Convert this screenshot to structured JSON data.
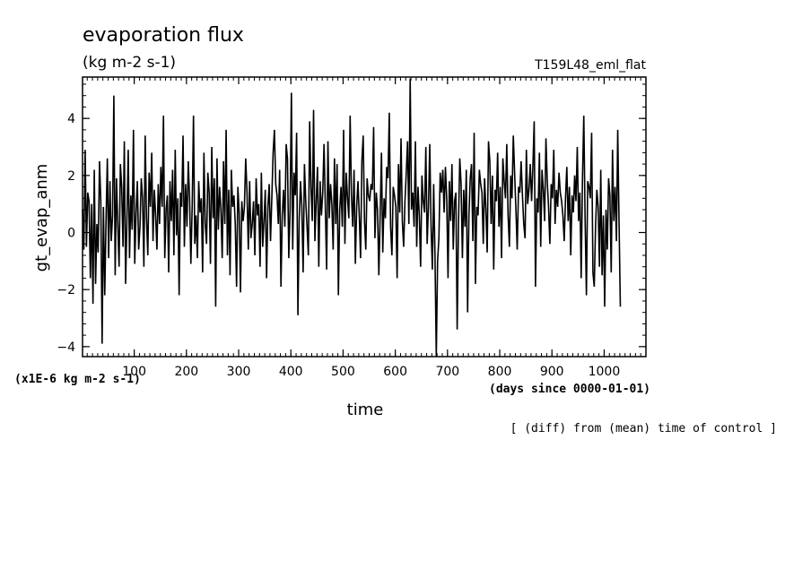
{
  "chart_data": {
    "type": "line",
    "title": "evaporation flux",
    "units": "(kg m-2 s-1)",
    "run_label": "T159L48_eml_flat",
    "ylabel": "gt_evap_anm",
    "xlabel": "time",
    "x_units": "(days since 0000-01-01)",
    "y_scale_note": "(x1E-6 kg m-2 s-1)",
    "footer": "[ (diff) from (mean) time of control ]",
    "xlim": [
      1,
      1080
    ],
    "ylim": [
      -4.35,
      5.45
    ],
    "x_ticks_major": [
      100,
      200,
      300,
      400,
      500,
      600,
      700,
      800,
      900,
      1000
    ],
    "y_ticks_major": [
      -4,
      -2,
      0,
      2,
      4
    ],
    "x_ticks_minor_step": 10,
    "y_ticks_minor_step": 0.4,
    "grid": false,
    "legend": "none",
    "line_color": "#000000",
    "series": [
      {
        "x_start": 1,
        "x_step": 2.5,
        "values": [
          0.8,
          -0.6,
          2.9,
          -0.5,
          1.4,
          1.1,
          -1.6,
          1.0,
          -2.5,
          2.2,
          -1.8,
          0.3,
          -0.7,
          2.5,
          1.1,
          -3.9,
          0.9,
          -2.2,
          0.4,
          2.6,
          -0.9,
          1.8,
          -0.3,
          0.6,
          4.8,
          -1.5,
          1.9,
          0.3,
          -1.2,
          2.4,
          1.6,
          -0.5,
          3.2,
          -1.8,
          0.4,
          2.9,
          -0.9,
          1.3,
          0.1,
          3.6,
          -1.1,
          0.7,
          1.8,
          -0.6,
          0.2,
          1.9,
          1.2,
          -1.2,
          3.4,
          0.5,
          -0.8,
          2.1,
          0.9,
          2.8,
          -0.3,
          1.5,
          0.6,
          -0.6,
          1.7,
          0.3,
          2.3,
          0.9,
          4.1,
          -0.9,
          0.8,
          1.3,
          -1.4,
          1.8,
          0.4,
          2.2,
          -0.8,
          2.9,
          -0.1,
          1.2,
          -2.2,
          1.4,
          0.9,
          3.4,
          -0.5,
          1.7,
          0.2,
          2.5,
          1.2,
          -1.1,
          0.9,
          4.1,
          -0.4,
          0.6,
          -0.9,
          1.8,
          0.7,
          1.2,
          -1.4,
          2.8,
          0.3,
          -0.4,
          2.1,
          1.4,
          -1.1,
          3.0,
          0.5,
          1.9,
          -2.6,
          2.6,
          0.1,
          1.6,
          0.8,
          -0.9,
          2.5,
          0.3,
          3.6,
          -0.8,
          1.5,
          -1.5,
          2.2,
          0.9,
          1.3,
          0.3,
          -1.9,
          1.6,
          0.7,
          -2.1,
          1.1,
          0.4,
          0.9,
          2.6,
          1.4,
          -0.6,
          1.8,
          -0.2,
          0.3,
          1.1,
          -0.8,
          1.9,
          0.6,
          1.0,
          -1.2,
          2.1,
          -0.5,
          0.4,
          1.5,
          -1.6,
          0.9,
          1.7,
          -0.3,
          1.2,
          2.8,
          3.6,
          1.7,
          1.3,
          0.3,
          2.2,
          -1.9,
          0.6,
          1.5,
          0.2,
          3.1,
          2.6,
          -0.9,
          0.8,
          4.9,
          -0.6,
          2.1,
          1.3,
          3.5,
          -2.9,
          0.5,
          1.8,
          0.9,
          -1.4,
          2.4,
          1.1,
          0.2,
          -0.8,
          3.9,
          1.6,
          0.4,
          4.3,
          -0.3,
          1.1,
          2.3,
          -1.2,
          1.8,
          0.6,
          1.4,
          3.1,
          0.9,
          -1.3,
          3.2,
          0.5,
          1.7,
          1.0,
          -0.6,
          2.6,
          0.3,
          2.4,
          -2.2,
          0.8,
          1.6,
          0.2,
          3.6,
          -0.4,
          2.1,
          1.2,
          0.5,
          4.1,
          1.3,
          0.2,
          2.2,
          -1.1,
          0.9,
          1.8,
          0.6,
          -0.9,
          2.5,
          3.4,
          0.4,
          -0.6,
          1.9,
          1.3,
          1.1,
          1.7,
          1.5,
          3.7,
          -0.2,
          1.4,
          0.8,
          -1.5,
          0.6,
          2.8,
          -0.7,
          1.2,
          0.5,
          2.3,
          1.9,
          4.2,
          0.2,
          -0.8,
          1.6,
          1.3,
          0.9,
          -1.6,
          2.4,
          0.7,
          3.3,
          0.4,
          -0.5,
          1.1,
          2.1,
          3.2,
          0.3,
          5.4,
          0.8,
          1.4,
          0.2,
          3.2,
          -0.5,
          1.6,
          0.6,
          -1.2,
          2.0,
          1.1,
          0.7,
          3.0,
          -0.4,
          0.9,
          3.1,
          0.2,
          -1.3,
          1.7,
          -0.8,
          -4.5,
          -1.0,
          -0.2,
          2.1,
          1.4,
          2.2,
          0.7,
          2.3,
          1.2,
          -1.6,
          1.8,
          0.4,
          2.4,
          -0.6,
          1.1,
          1.4,
          -3.4,
          0.3,
          2.6,
          1.7,
          -0.9,
          1.5,
          0.2,
          2.2,
          -2.8,
          0.6,
          1.9,
          2.4,
          -0.3,
          3.5,
          -1.8,
          0.9,
          0.6,
          2.2,
          1.7,
          1.4,
          -0.4,
          1.9,
          0.8,
          -0.7,
          3.2,
          2.5,
          0.3,
          2.0,
          -1.3,
          1.5,
          1.1,
          2.8,
          0.2,
          1.6,
          -0.9,
          2.6,
          1.8,
          1.2,
          3.1,
          0.6,
          -0.5,
          2.0,
          1.2,
          3.4,
          2.1,
          0.8,
          -0.6,
          1.6,
          1.4,
          2.5,
          1.3,
          0.3,
          -0.2,
          2.9,
          1.0,
          1.5,
          2.4,
          1.1,
          2.3,
          3.9,
          -1.9,
          1.2,
          0.7,
          2.8,
          -0.5,
          2.2,
          1.5,
          0.4,
          3.3,
          1.8,
          0.9,
          -0.4,
          1.7,
          1.2,
          2.9,
          0.3,
          1.5,
          0.9,
          2.1,
          1.4,
          1.1,
          0.6,
          -0.3,
          1.2,
          2.3,
          0.4,
          1.6,
          -0.8,
          1.3,
          0.7,
          2.0,
          1.1,
          3.0,
          0.4,
          1.4,
          -1.6,
          1.9,
          4.1,
          0.5,
          -2.2,
          1.8,
          1.6,
          1.2,
          3.5,
          -1.4,
          -1.9,
          0.2,
          1.5,
          0.9,
          -1.2,
          2.2,
          -1.5,
          0.6,
          -2.6,
          0.8,
          -0.6,
          1.9,
          1.3,
          -1.4,
          2.9,
          0.4,
          1.6,
          -0.3,
          3.6,
          0.4,
          -2.6
        ]
      }
    ]
  }
}
